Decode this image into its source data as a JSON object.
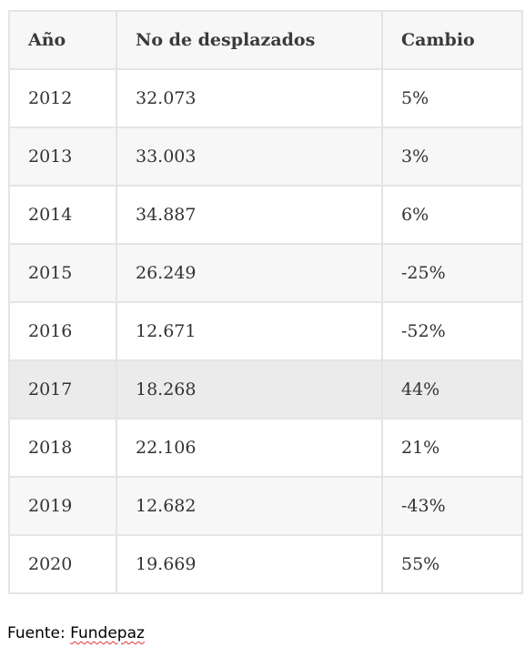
{
  "table": {
    "headers": [
      "Año",
      "No de desplazados",
      "Cambio"
    ],
    "rows": [
      [
        "2012",
        "32.073",
        "5%"
      ],
      [
        "2013",
        "33.003",
        "3%"
      ],
      [
        "2014",
        "34.887",
        "6%"
      ],
      [
        "2015",
        "26.249",
        "-25%"
      ],
      [
        "2016",
        "12.671",
        "-52%"
      ],
      [
        "2017",
        "18.268",
        "44%"
      ],
      [
        "2018",
        "22.106",
        "21%"
      ],
      [
        "2019",
        "12.682",
        "-43%"
      ],
      [
        "2020",
        "19.669",
        "55%"
      ]
    ]
  },
  "source": {
    "label": "Fuente: ",
    "name": "Fundepaz"
  },
  "colors": {
    "border": "#e4e4e4",
    "stripe": "#f7f7f7",
    "highlight_row": "#ebebeb",
    "text": "#333333"
  }
}
